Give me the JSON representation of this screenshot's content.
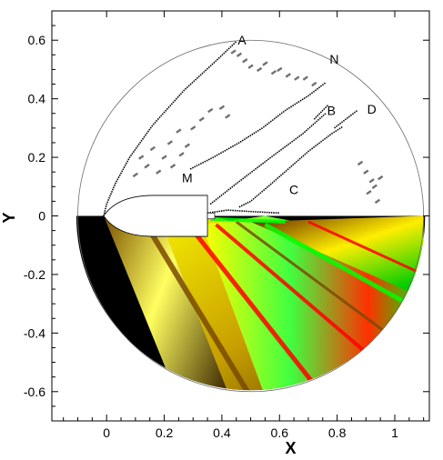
{
  "chart_data": {
    "type": "scatter",
    "xlabel": "X",
    "ylabel": "Y",
    "xlim": [
      -0.19,
      1.12
    ],
    "ylim": [
      -0.7,
      0.7
    ],
    "x_ticks": [
      0,
      0.2,
      0.4,
      0.6,
      0.8,
      1
    ],
    "x_tick_labels": [
      "0",
      "0.2",
      "0.4",
      "0.6",
      "0.8",
      "1"
    ],
    "y_ticks": [
      -0.6,
      -0.4,
      -0.2,
      0,
      0.2,
      0.4,
      0.6
    ],
    "y_tick_labels": [
      "-0.6",
      "-0.4",
      "-0.2",
      "0",
      "0.2",
      "0.4",
      "0.6"
    ],
    "domain_circle": {
      "center": [
        0.5,
        0
      ],
      "radius": 0.6
    },
    "body": {
      "nose_x": -0.01,
      "base_x": 0.35,
      "radius": 0.07,
      "sting_end_x": 0.375,
      "sting_radius": 0.01
    },
    "annotations": [
      {
        "text": "A",
        "x": 0.47,
        "y": 0.585
      },
      {
        "text": "N",
        "x": 0.79,
        "y": 0.52
      },
      {
        "text": "B",
        "x": 0.78,
        "y": 0.345
      },
      {
        "text": "D",
        "x": 0.92,
        "y": 0.35
      },
      {
        "text": "M",
        "x": 0.28,
        "y": 0.115
      },
      {
        "text": "C",
        "x": 0.65,
        "y": 0.075
      }
    ],
    "shock_lines": [
      {
        "name": "bow-shock",
        "points": [
          [
            -0.01,
            0.0
          ],
          [
            0.0,
            0.04
          ],
          [
            0.03,
            0.11
          ],
          [
            0.08,
            0.2
          ],
          [
            0.16,
            0.31
          ],
          [
            0.27,
            0.43
          ],
          [
            0.38,
            0.53
          ],
          [
            0.45,
            0.595
          ]
        ]
      },
      {
        "name": "shock-M",
        "points": [
          [
            0.36,
            0.04
          ],
          [
            0.45,
            0.11
          ],
          [
            0.57,
            0.2
          ],
          [
            0.68,
            0.28
          ],
          [
            0.76,
            0.35
          ]
        ]
      },
      {
        "name": "shock-M-lower",
        "points": [
          [
            0.29,
            0.16
          ],
          [
            0.37,
            0.2
          ],
          [
            0.46,
            0.25
          ],
          [
            0.54,
            0.3
          ],
          [
            0.62,
            0.36
          ],
          [
            0.7,
            0.41
          ],
          [
            0.76,
            0.455
          ]
        ]
      },
      {
        "name": "shock-C",
        "points": [
          [
            0.46,
            0.03
          ],
          [
            0.5,
            0.05
          ],
          [
            0.56,
            0.1
          ],
          [
            0.63,
            0.16
          ],
          [
            0.7,
            0.22
          ],
          [
            0.78,
            0.28
          ],
          [
            0.82,
            0.305
          ]
        ]
      },
      {
        "name": "shock-D",
        "points": [
          [
            0.79,
            0.3
          ],
          [
            0.83,
            0.33
          ],
          [
            0.87,
            0.36
          ]
        ]
      },
      {
        "name": "shock-B",
        "points": [
          [
            0.72,
            0.33
          ],
          [
            0.75,
            0.36
          ],
          [
            0.77,
            0.38
          ]
        ]
      },
      {
        "name": "shear-C",
        "points": [
          [
            0.35,
            0.01
          ],
          [
            0.42,
            0.02
          ],
          [
            0.5,
            0.015
          ],
          [
            0.6,
            0.01
          ]
        ]
      }
    ],
    "noise_clusters": [
      {
        "name": "cluster-A",
        "points": [
          [
            0.5,
            0.51
          ],
          [
            0.53,
            0.5
          ],
          [
            0.55,
            0.52
          ],
          [
            0.58,
            0.49
          ],
          [
            0.6,
            0.5
          ],
          [
            0.63,
            0.48
          ],
          [
            0.66,
            0.47
          ],
          [
            0.69,
            0.47
          ],
          [
            0.72,
            0.45
          ],
          [
            0.48,
            0.53
          ],
          [
            0.46,
            0.55
          ],
          [
            0.44,
            0.56
          ]
        ]
      },
      {
        "name": "cluster-mid",
        "points": [
          [
            0.12,
            0.2
          ],
          [
            0.14,
            0.17
          ],
          [
            0.1,
            0.14
          ],
          [
            0.16,
            0.23
          ],
          [
            0.18,
            0.15
          ],
          [
            0.2,
            0.2
          ],
          [
            0.22,
            0.25
          ],
          [
            0.25,
            0.29
          ],
          [
            0.28,
            0.24
          ],
          [
            0.3,
            0.3
          ],
          [
            0.33,
            0.33
          ],
          [
            0.36,
            0.36
          ],
          [
            0.4,
            0.37
          ],
          [
            0.42,
            0.34
          ],
          [
            0.26,
            0.21
          ],
          [
            0.23,
            0.17
          ]
        ]
      },
      {
        "name": "cluster-right",
        "points": [
          [
            0.88,
            0.18
          ],
          [
            0.9,
            0.15
          ],
          [
            0.92,
            0.12
          ],
          [
            0.93,
            0.1
          ],
          [
            0.95,
            0.13
          ],
          [
            0.94,
            0.05
          ],
          [
            0.91,
            0.08
          ]
        ]
      }
    ],
    "contour_bands": [
      {
        "color": "#000000"
      },
      {
        "color": "#ffff00"
      },
      {
        "color": "#00ff00"
      },
      {
        "color": "#ff0000"
      },
      {
        "color": "#7a4a00"
      }
    ]
  }
}
